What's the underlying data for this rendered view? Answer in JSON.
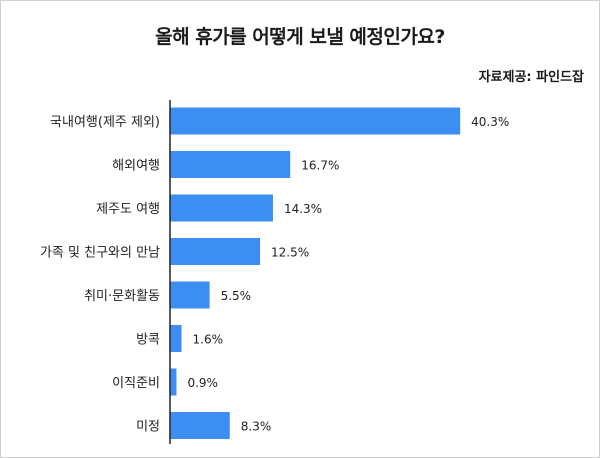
{
  "source": "자료제공: 파인드잡",
  "colors": {
    "bar": "#3d8ef2",
    "axis": "#222222"
  },
  "chart_data": {
    "type": "bar",
    "orientation": "horizontal",
    "title": "올해 휴가를 어떻게 보낼 예정인가요?",
    "categories": [
      "국내여행(제주 제외)",
      "해외여행",
      "제주도 여행",
      "가족 및 친구와의 만남",
      "취미·문화활동",
      "방콕",
      "이직준비",
      "미정"
    ],
    "values": [
      40.3,
      16.7,
      14.3,
      12.5,
      5.5,
      1.6,
      0.9,
      8.3
    ],
    "value_labels": [
      "40.3%",
      "16.7%",
      "14.3%",
      "12.5%",
      "5.5%",
      "1.6%",
      "0.9%",
      "8.3%"
    ],
    "unit": "%",
    "grid": false,
    "legend": "none"
  }
}
